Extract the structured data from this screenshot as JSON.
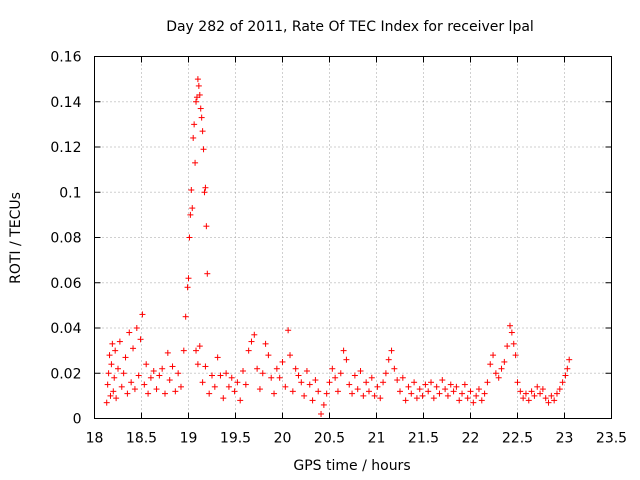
{
  "chart_data": {
    "type": "scatter",
    "title": "Day 282 of 2011, Rate Of TEC Index for receiver lpal",
    "xlabel": "GPS time / hours",
    "ylabel": "ROTI / TECUs",
    "xlim": [
      18,
      23.5
    ],
    "ylim": [
      0,
      0.16
    ],
    "xticks": [
      "18",
      "18.5",
      "19",
      "19.5",
      "20",
      "20.5",
      "21",
      "21.5",
      "22",
      "22.5",
      "23",
      "23.5"
    ],
    "yticks": [
      "0",
      "0.02",
      "0.04",
      "0.06",
      "0.08",
      "0.1",
      "0.12",
      "0.14",
      "0.16"
    ],
    "grid": true,
    "marker": "plus",
    "marker_color": "#ff0000",
    "series": [
      {
        "points": [
          [
            18.13,
            0.007
          ],
          [
            18.14,
            0.015
          ],
          [
            18.15,
            0.02
          ],
          [
            18.16,
            0.028
          ],
          [
            18.17,
            0.01
          ],
          [
            18.18,
            0.024
          ],
          [
            18.19,
            0.033
          ],
          [
            18.2,
            0.012
          ],
          [
            18.21,
            0.018
          ],
          [
            18.22,
            0.03
          ],
          [
            18.23,
            0.009
          ],
          [
            18.25,
            0.022
          ],
          [
            18.27,
            0.034
          ],
          [
            18.29,
            0.014
          ],
          [
            18.31,
            0.02
          ],
          [
            18.33,
            0.027
          ],
          [
            18.35,
            0.011
          ],
          [
            18.37,
            0.038
          ],
          [
            18.39,
            0.016
          ],
          [
            18.41,
            0.031
          ],
          [
            18.43,
            0.013
          ],
          [
            18.45,
            0.04
          ],
          [
            18.47,
            0.019
          ],
          [
            18.49,
            0.035
          ],
          [
            18.51,
            0.046
          ],
          [
            18.53,
            0.015
          ],
          [
            18.55,
            0.024
          ],
          [
            18.57,
            0.011
          ],
          [
            18.6,
            0.018
          ],
          [
            18.63,
            0.021
          ],
          [
            18.66,
            0.013
          ],
          [
            18.69,
            0.019
          ],
          [
            18.72,
            0.022
          ],
          [
            18.75,
            0.011
          ],
          [
            18.78,
            0.029
          ],
          [
            18.8,
            0.017
          ],
          [
            18.83,
            0.023
          ],
          [
            18.86,
            0.012
          ],
          [
            18.89,
            0.02
          ],
          [
            18.92,
            0.014
          ],
          [
            18.95,
            0.03
          ],
          [
            18.97,
            0.045
          ],
          [
            18.99,
            0.058
          ],
          [
            19.0,
            0.062
          ],
          [
            19.01,
            0.08
          ],
          [
            19.02,
            0.09
          ],
          [
            19.03,
            0.101
          ],
          [
            19.04,
            0.093
          ],
          [
            19.05,
            0.124
          ],
          [
            19.06,
            0.13
          ],
          [
            19.07,
            0.113
          ],
          [
            19.08,
            0.14
          ],
          [
            19.09,
            0.142
          ],
          [
            19.1,
            0.15
          ],
          [
            19.11,
            0.147
          ],
          [
            19.12,
            0.143
          ],
          [
            19.13,
            0.137
          ],
          [
            19.14,
            0.133
          ],
          [
            19.15,
            0.127
          ],
          [
            19.16,
            0.119
          ],
          [
            19.17,
            0.1
          ],
          [
            19.18,
            0.102
          ],
          [
            19.19,
            0.085
          ],
          [
            19.2,
            0.064
          ],
          [
            19.08,
            0.03
          ],
          [
            19.1,
            0.024
          ],
          [
            19.12,
            0.032
          ],
          [
            19.15,
            0.016
          ],
          [
            19.18,
            0.023
          ],
          [
            19.22,
            0.011
          ],
          [
            19.25,
            0.019
          ],
          [
            19.28,
            0.014
          ],
          [
            19.31,
            0.027
          ],
          [
            19.34,
            0.019
          ],
          [
            19.37,
            0.009
          ],
          [
            19.4,
            0.02
          ],
          [
            19.43,
            0.014
          ],
          [
            19.46,
            0.018
          ],
          [
            19.49,
            0.012
          ],
          [
            19.52,
            0.016
          ],
          [
            19.55,
            0.008
          ],
          [
            19.58,
            0.021
          ],
          [
            19.61,
            0.015
          ],
          [
            19.64,
            0.03
          ],
          [
            19.67,
            0.034
          ],
          [
            19.7,
            0.037
          ],
          [
            19.73,
            0.022
          ],
          [
            19.76,
            0.013
          ],
          [
            19.79,
            0.02
          ],
          [
            19.82,
            0.033
          ],
          [
            19.85,
            0.028
          ],
          [
            19.88,
            0.018
          ],
          [
            19.91,
            0.011
          ],
          [
            19.94,
            0.022
          ],
          [
            19.97,
            0.018
          ],
          [
            20.0,
            0.025
          ],
          [
            20.03,
            0.014
          ],
          [
            20.06,
            0.039
          ],
          [
            20.08,
            0.028
          ],
          [
            20.11,
            0.012
          ],
          [
            20.14,
            0.022
          ],
          [
            20.17,
            0.019
          ],
          [
            20.2,
            0.016
          ],
          [
            20.23,
            0.01
          ],
          [
            20.26,
            0.021
          ],
          [
            20.29,
            0.015
          ],
          [
            20.32,
            0.008
          ],
          [
            20.35,
            0.017
          ],
          [
            20.38,
            0.012
          ],
          [
            20.41,
            0.002
          ],
          [
            20.44,
            0.006
          ],
          [
            20.47,
            0.011
          ],
          [
            20.5,
            0.016
          ],
          [
            20.53,
            0.022
          ],
          [
            20.56,
            0.018
          ],
          [
            20.59,
            0.012
          ],
          [
            20.62,
            0.02
          ],
          [
            20.65,
            0.03
          ],
          [
            20.68,
            0.026
          ],
          [
            20.71,
            0.015
          ],
          [
            20.74,
            0.011
          ],
          [
            20.77,
            0.019
          ],
          [
            20.8,
            0.013
          ],
          [
            20.83,
            0.021
          ],
          [
            20.86,
            0.01
          ],
          [
            20.89,
            0.016
          ],
          [
            20.92,
            0.012
          ],
          [
            20.95,
            0.018
          ],
          [
            20.98,
            0.01
          ],
          [
            21.01,
            0.014
          ],
          [
            21.04,
            0.009
          ],
          [
            21.07,
            0.016
          ],
          [
            21.1,
            0.02
          ],
          [
            21.13,
            0.026
          ],
          [
            21.16,
            0.03
          ],
          [
            21.19,
            0.022
          ],
          [
            21.22,
            0.017
          ],
          [
            21.25,
            0.012
          ],
          [
            21.28,
            0.018
          ],
          [
            21.31,
            0.008
          ],
          [
            21.34,
            0.014
          ],
          [
            21.37,
            0.011
          ],
          [
            21.4,
            0.016
          ],
          [
            21.43,
            0.009
          ],
          [
            21.46,
            0.013
          ],
          [
            21.49,
            0.01
          ],
          [
            21.52,
            0.015
          ],
          [
            21.55,
            0.012
          ],
          [
            21.58,
            0.016
          ],
          [
            21.61,
            0.009
          ],
          [
            21.64,
            0.014
          ],
          [
            21.67,
            0.011
          ],
          [
            21.7,
            0.017
          ],
          [
            21.73,
            0.013
          ],
          [
            21.76,
            0.01
          ],
          [
            21.79,
            0.015
          ],
          [
            21.82,
            0.012
          ],
          [
            21.85,
            0.014
          ],
          [
            21.88,
            0.008
          ],
          [
            21.91,
            0.011
          ],
          [
            21.94,
            0.015
          ],
          [
            21.97,
            0.009
          ],
          [
            22.0,
            0.012
          ],
          [
            22.03,
            0.007
          ],
          [
            22.06,
            0.01
          ],
          [
            22.09,
            0.013
          ],
          [
            22.12,
            0.008
          ],
          [
            22.15,
            0.011
          ],
          [
            22.18,
            0.016
          ],
          [
            22.21,
            0.024
          ],
          [
            22.24,
            0.028
          ],
          [
            22.27,
            0.02
          ],
          [
            22.3,
            0.018
          ],
          [
            22.33,
            0.022
          ],
          [
            22.36,
            0.025
          ],
          [
            22.39,
            0.032
          ],
          [
            22.42,
            0.041
          ],
          [
            22.44,
            0.038
          ],
          [
            22.46,
            0.033
          ],
          [
            22.48,
            0.028
          ],
          [
            22.5,
            0.016
          ],
          [
            22.53,
            0.012
          ],
          [
            22.56,
            0.009
          ],
          [
            22.59,
            0.011
          ],
          [
            22.62,
            0.008
          ],
          [
            22.65,
            0.012
          ],
          [
            22.68,
            0.01
          ],
          [
            22.71,
            0.014
          ],
          [
            22.74,
            0.011
          ],
          [
            22.77,
            0.013
          ],
          [
            22.8,
            0.009
          ],
          [
            22.83,
            0.007
          ],
          [
            22.86,
            0.01
          ],
          [
            22.89,
            0.008
          ],
          [
            22.92,
            0.011
          ],
          [
            22.95,
            0.013
          ],
          [
            22.98,
            0.016
          ],
          [
            23.01,
            0.019
          ],
          [
            23.03,
            0.022
          ],
          [
            23.05,
            0.026
          ]
        ]
      }
    ]
  }
}
